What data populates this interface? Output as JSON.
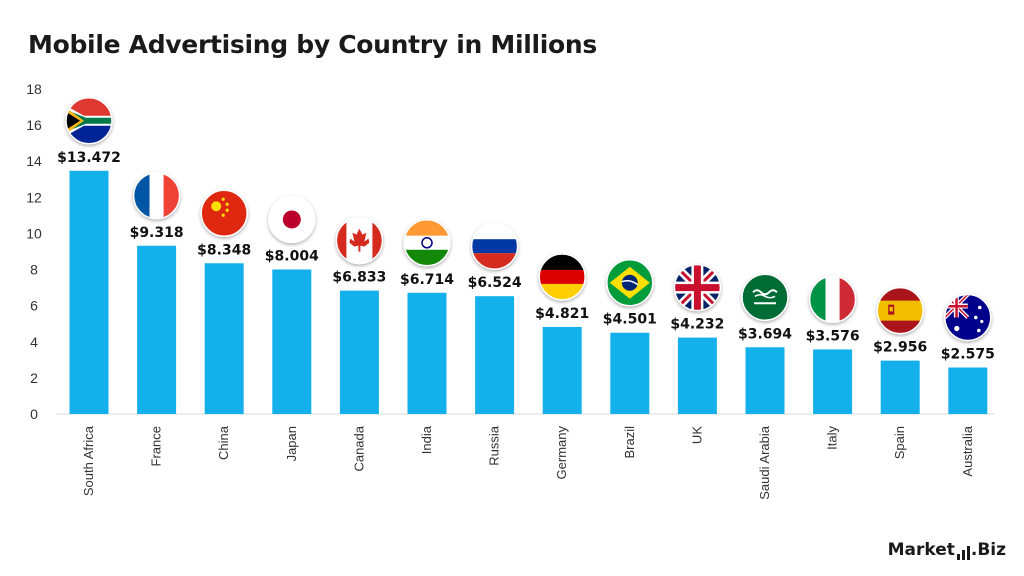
{
  "chart_data": {
    "type": "bar",
    "title": "Mobile Advertising by Country in Millions",
    "xlabel": "",
    "ylabel": "",
    "ylim": [
      0,
      18
    ],
    "yticks": [
      0,
      2,
      4,
      6,
      8,
      10,
      12,
      14,
      16,
      18
    ],
    "grid": false,
    "categories": [
      "South Africa",
      "France",
      "China",
      "Japan",
      "Canada",
      "India",
      "Russia",
      "Germany",
      "Brazil",
      "UK",
      "Saudi Arabia",
      "Italy",
      "Spain",
      "Australia"
    ],
    "values": [
      13.472,
      9.318,
      8.348,
      8.004,
      6.833,
      6.714,
      6.524,
      4.821,
      4.501,
      4.232,
      3.694,
      3.576,
      2.956,
      2.575
    ],
    "value_labels": [
      "$13.472",
      "$9.318",
      "$8.348",
      "$8.004",
      "$6.833",
      "$6.714",
      "$6.524",
      "$4.821",
      "$4.501",
      "$4.232",
      "$3.694",
      "$3.576",
      "$2.956",
      "$2.575"
    ],
    "flag_icons": [
      "south-africa-flag-icon",
      "france-flag-icon",
      "china-flag-icon",
      "japan-flag-icon",
      "canada-flag-icon",
      "india-flag-icon",
      "russia-flag-icon",
      "germany-flag-icon",
      "brazil-flag-icon",
      "uk-flag-icon",
      "saudi-arabia-flag-icon",
      "italy-flag-icon",
      "spain-flag-icon",
      "australia-flag-icon"
    ],
    "bar_color": "#13b0ec"
  },
  "brand": {
    "name_part1": "Market",
    "name_part2": ".Biz"
  }
}
